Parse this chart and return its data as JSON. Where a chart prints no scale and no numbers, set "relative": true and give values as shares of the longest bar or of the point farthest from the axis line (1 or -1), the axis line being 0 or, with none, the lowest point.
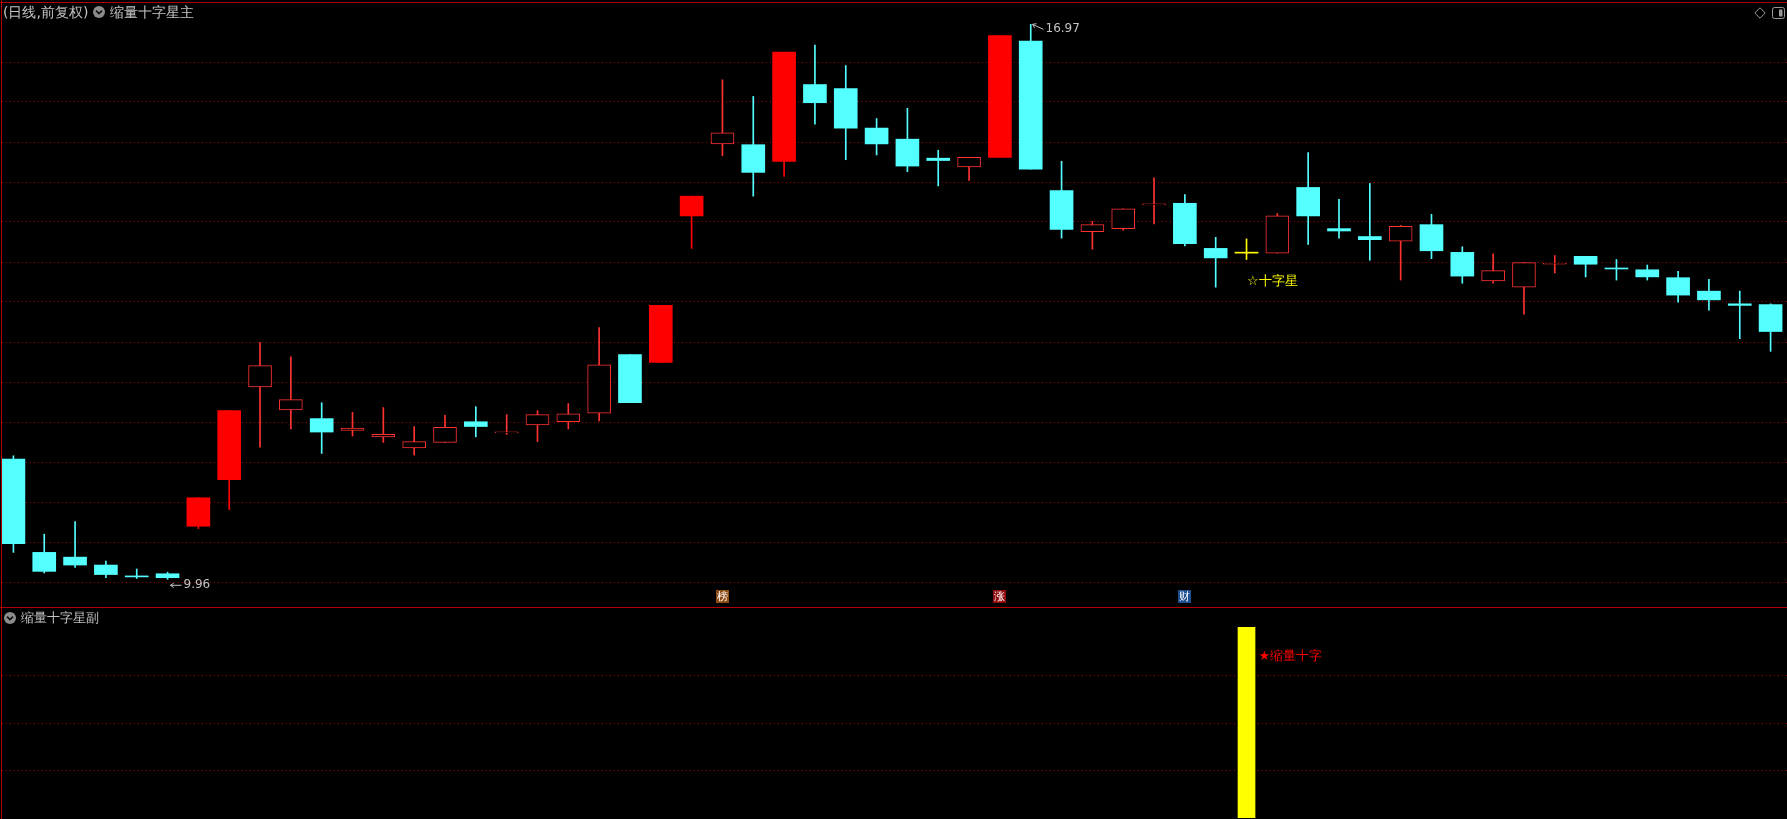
{
  "chart_data": [
    {
      "type": "candlestick",
      "title": "(日线,前复权)",
      "subtitle": "缩量十字星主",
      "categories": [
        null,
        null,
        null,
        null,
        null,
        null,
        null,
        null,
        null,
        null,
        null,
        null,
        null,
        null,
        null,
        null,
        null,
        null,
        null,
        null,
        null,
        null,
        null,
        null,
        null,
        null,
        null,
        null,
        null,
        null,
        null,
        null,
        null,
        null,
        null,
        null,
        null,
        null,
        null,
        null,
        null,
        null,
        null,
        null,
        null,
        null,
        null,
        null,
        null,
        null,
        null,
        null,
        null,
        null,
        null,
        null,
        null,
        null
      ],
      "ohlc": [
        [
          11.48,
          11.52,
          10.3,
          10.41
        ],
        [
          10.3,
          10.53,
          10.04,
          10.06
        ],
        [
          10.24,
          10.69,
          10.11,
          10.14
        ],
        [
          10.14,
          10.19,
          9.98,
          10.02
        ],
        [
          10.0,
          10.09,
          9.97,
          9.99
        ],
        [
          10.03,
          10.05,
          9.96,
          9.98
        ],
        [
          10.63,
          10.99,
          10.6,
          10.99
        ],
        [
          11.22,
          12.09,
          10.84,
          12.09
        ],
        [
          12.39,
          12.95,
          11.63,
          12.66
        ],
        [
          12.1,
          12.77,
          11.86,
          12.23
        ],
        [
          11.99,
          12.19,
          11.55,
          11.82
        ],
        [
          11.84,
          12.07,
          11.77,
          11.87
        ],
        [
          11.76,
          12.13,
          11.69,
          11.79
        ],
        [
          11.62,
          11.89,
          11.53,
          11.7
        ],
        [
          11.69,
          12.03,
          11.69,
          11.88
        ],
        [
          11.95,
          12.14,
          11.76,
          11.89
        ],
        [
          11.81,
          12.04,
          11.79,
          11.82
        ],
        [
          11.91,
          12.09,
          11.7,
          12.04
        ],
        [
          11.95,
          12.18,
          11.86,
          12.05
        ],
        [
          12.06,
          13.14,
          11.96,
          12.67
        ],
        [
          12.8,
          12.8,
          12.19,
          12.19
        ],
        [
          12.7,
          13.42,
          12.7,
          13.42
        ],
        [
          14.55,
          14.8,
          14.14,
          14.8
        ],
        [
          15.46,
          16.27,
          15.31,
          15.6
        ],
        [
          15.45,
          16.06,
          14.8,
          15.1
        ],
        [
          15.24,
          16.62,
          15.05,
          16.62
        ],
        [
          16.21,
          16.71,
          15.71,
          15.98
        ],
        [
          16.16,
          16.45,
          15.26,
          15.66
        ],
        [
          15.66,
          15.78,
          15.32,
          15.46
        ],
        [
          15.52,
          15.91,
          15.11,
          15.18
        ],
        [
          15.28,
          15.38,
          14.93,
          15.25
        ],
        [
          15.17,
          15.29,
          15.0,
          15.29
        ],
        [
          15.29,
          16.83,
          15.29,
          16.83
        ],
        [
          16.76,
          16.97,
          15.14,
          15.14
        ],
        [
          14.87,
          15.24,
          14.27,
          14.38
        ],
        [
          14.35,
          14.48,
          14.13,
          14.44
        ],
        [
          14.39,
          14.64,
          14.37,
          14.64
        ],
        [
          14.69,
          15.03,
          14.45,
          14.7
        ],
        [
          14.71,
          14.82,
          14.17,
          14.2
        ],
        [
          14.14,
          14.28,
          13.65,
          14.02
        ],
        [
          14.08,
          14.26,
          14.0,
          14.08
        ],
        [
          14.08,
          14.58,
          14.08,
          14.55
        ],
        [
          14.91,
          15.35,
          14.19,
          14.55
        ],
        [
          14.39,
          14.76,
          14.27,
          14.36
        ],
        [
          14.29,
          14.96,
          13.99,
          14.25
        ],
        [
          14.23,
          14.43,
          13.74,
          14.42
        ],
        [
          14.44,
          14.57,
          14.01,
          14.11
        ],
        [
          14.09,
          14.16,
          13.7,
          13.79
        ],
        [
          13.73,
          14.07,
          13.7,
          13.86
        ],
        [
          13.65,
          13.96,
          13.31,
          13.96
        ],
        [
          13.94,
          14.05,
          13.83,
          13.95
        ],
        [
          14.04,
          14.04,
          13.78,
          13.94
        ],
        [
          13.89,
          14.0,
          13.74,
          13.88
        ],
        [
          13.87,
          13.93,
          13.74,
          13.78
        ],
        [
          13.77,
          13.85,
          13.46,
          13.55
        ],
        [
          13.6,
          13.75,
          13.36,
          13.49
        ],
        [
          13.44,
          13.6,
          13.0,
          13.42
        ],
        [
          13.43,
          13.44,
          12.84,
          13.09
        ]
      ],
      "color": "#ff3232",
      "colors": [
        "#54ffff",
        "#54ffff",
        "#54ffff",
        "#54ffff",
        "#54ffff",
        "#54ffff",
        "#ff0000",
        "#ff0000",
        "#ff3232",
        "#ff3232",
        "#54ffff",
        "#ff3232",
        "#ff3232",
        "#ff3232",
        "#ff3232",
        "#54ffff",
        "#ff3232",
        "#ff3232",
        "#ff3232",
        "#ff3232",
        "#54ffff",
        "#ff0000",
        "#ff0000",
        "#ff3232",
        "#54ffff",
        "#ff0000",
        "#54ffff",
        "#54ffff",
        "#54ffff",
        "#54ffff",
        "#54ffff",
        "#ff3232",
        "#ff0000",
        "#54ffff",
        "#54ffff",
        "#ff3232",
        "#ff3232",
        "#ff3232",
        "#54ffff",
        "#54ffff",
        "#ffff00",
        "#ff3232",
        "#54ffff",
        "#54ffff",
        "#54ffff",
        "#ff3232",
        "#54ffff",
        "#54ffff",
        "#ff3232",
        "#ff3232",
        "#ff3232",
        "#54ffff",
        "#54ffff",
        "#54ffff",
        "#54ffff",
        "#54ffff",
        "#54ffff",
        "#54ffff"
      ],
      "ylim": [
        9.61,
        17.24
      ],
      "yticks": [
        {
          "value": 9.93,
          "label": null
        },
        {
          "value": 10.43,
          "label": null
        },
        {
          "value": 10.94,
          "label": null
        },
        {
          "value": 11.44,
          "label": null
        },
        {
          "value": 11.95,
          "label": null
        },
        {
          "value": 12.45,
          "label": null
        },
        {
          "value": 12.96,
          "label": null
        },
        {
          "value": 13.47,
          "label": null
        },
        {
          "value": 13.97,
          "label": null
        },
        {
          "value": 14.48,
          "label": null
        },
        {
          "value": 14.98,
          "label": null
        },
        {
          "value": 15.49,
          "label": null
        },
        {
          "value": 16.0,
          "label": null
        },
        {
          "value": 16.5,
          "label": null
        }
      ],
      "grid": "y",
      "annotations": [
        "16.97",
        "9.96",
        "☆十字星",
        "榜",
        "涨",
        "财"
      ]
    },
    {
      "type": "bar",
      "title": "缩量十字星副",
      "categories": [
        null,
        null,
        null,
        null,
        null,
        null,
        null,
        null,
        null,
        null,
        null,
        null,
        null,
        null,
        null,
        null,
        null,
        null,
        null,
        null,
        null,
        null,
        null,
        null,
        null,
        null,
        null,
        null,
        null,
        null,
        null,
        null,
        null,
        null,
        null,
        null,
        null,
        null,
        null,
        null,
        null,
        null,
        null,
        null,
        null,
        null,
        null,
        null,
        null,
        null,
        null,
        null,
        null,
        null,
        null,
        null,
        null,
        null
      ],
      "values": [
        null,
        null,
        null,
        null,
        null,
        null,
        null,
        null,
        null,
        null,
        null,
        null,
        null,
        null,
        null,
        null,
        null,
        null,
        null,
        null,
        null,
        null,
        null,
        null,
        null,
        null,
        null,
        null,
        null,
        null,
        null,
        null,
        null,
        null,
        null,
        null,
        null,
        null,
        null,
        null,
        1,
        null,
        null,
        null,
        null,
        null,
        null,
        null,
        null,
        null,
        null,
        null,
        null,
        null,
        null,
        null,
        null,
        null
      ],
      "color": "#ffff00",
      "relative": true,
      "ref_lines": [
        {
          "axis": "y",
          "value": 0.25,
          "color": "#a00000",
          "line_style": "dotted"
        },
        {
          "axis": "y",
          "value": 0.5,
          "color": "#a00000",
          "line_style": "dotted"
        },
        {
          "axis": "y",
          "value": 0.75,
          "color": "#a00000",
          "line_style": "dotted"
        }
      ],
      "annotations": [
        "★缩量十字"
      ]
    }
  ]
}
